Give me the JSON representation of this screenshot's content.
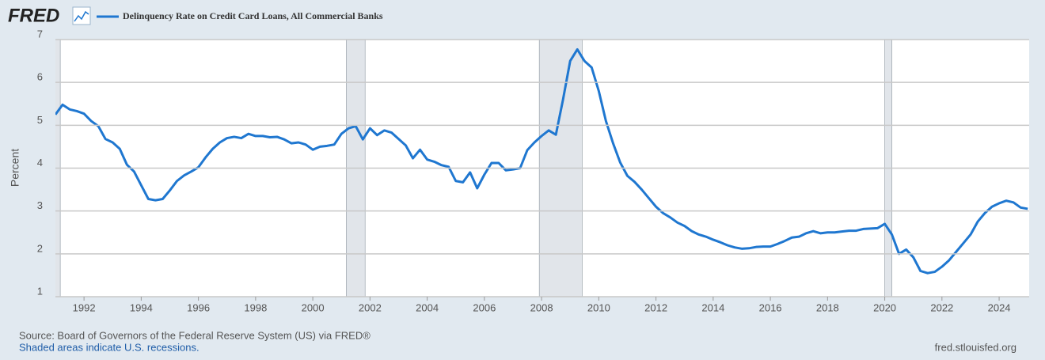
{
  "chart_data": {
    "type": "line",
    "logo": "FRED",
    "title": "Delinquency Rate on Credit Card Loans, All Commercial Banks",
    "y_label": "Percent",
    "source": "Source: Board of Governors of the Federal Reserve System (US) via FRED®",
    "recession_note": "Shaded areas indicate U.S. recessions.",
    "site": "fred.stlouisfed.org",
    "xlim": [
      1991,
      2025.05
    ],
    "ylim": [
      1,
      7
    ],
    "xticks": [
      1992,
      1994,
      1996,
      1998,
      2000,
      2002,
      2004,
      2006,
      2008,
      2010,
      2012,
      2014,
      2016,
      2018,
      2020,
      2022,
      2024
    ],
    "yticks": [
      1,
      2,
      3,
      4,
      5,
      6,
      7
    ],
    "grid": true,
    "recessions": [
      [
        1990.5,
        1991.17
      ],
      [
        2001.17,
        2001.83
      ],
      [
        2007.92,
        2009.42
      ],
      [
        2020.0,
        2020.25
      ]
    ],
    "x": [
      1991,
      1991.25,
      1991.5,
      1991.75,
      1992,
      1992.25,
      1992.5,
      1992.75,
      1993,
      1993.25,
      1993.5,
      1993.75,
      1994,
      1994.25,
      1994.5,
      1994.75,
      1995,
      1995.25,
      1995.5,
      1995.75,
      1996,
      1996.25,
      1996.5,
      1996.75,
      1997,
      1997.25,
      1997.5,
      1997.75,
      1998,
      1998.25,
      1998.5,
      1998.75,
      1999,
      1999.25,
      1999.5,
      1999.75,
      2000,
      2000.25,
      2000.5,
      2000.75,
      2001,
      2001.25,
      2001.5,
      2001.75,
      2002,
      2002.25,
      2002.5,
      2002.75,
      2003,
      2003.25,
      2003.5,
      2003.75,
      2004,
      2004.25,
      2004.5,
      2004.75,
      2005,
      2005.25,
      2005.5,
      2005.75,
      2006,
      2006.25,
      2006.5,
      2006.75,
      2007,
      2007.25,
      2007.5,
      2007.75,
      2008,
      2008.25,
      2008.5,
      2008.75,
      2009,
      2009.25,
      2009.5,
      2009.75,
      2010,
      2010.25,
      2010.5,
      2010.75,
      2011,
      2011.25,
      2011.5,
      2011.75,
      2012,
      2012.25,
      2012.5,
      2012.75,
      2013,
      2013.25,
      2013.5,
      2013.75,
      2014,
      2014.25,
      2014.5,
      2014.75,
      2015,
      2015.25,
      2015.5,
      2015.75,
      2016,
      2016.25,
      2016.5,
      2016.75,
      2017,
      2017.25,
      2017.5,
      2017.75,
      2018,
      2018.25,
      2018.5,
      2018.75,
      2019,
      2019.25,
      2019.5,
      2019.75,
      2020,
      2020.25,
      2020.5,
      2020.75,
      2021,
      2021.25,
      2021.5,
      2021.75,
      2022,
      2022.25,
      2022.5,
      2022.75,
      2023,
      2023.25,
      2023.5,
      2023.75,
      2024,
      2024.25,
      2024.5,
      2024.75,
      2025
    ],
    "series": [
      {
        "name": "Delinquency Rate on Credit Card Loans, All Commercial Banks",
        "color": "#1f77d0",
        "values": [
          5.25,
          5.48,
          5.37,
          5.33,
          5.27,
          5.1,
          4.98,
          4.68,
          4.6,
          4.45,
          4.08,
          3.92,
          3.6,
          3.28,
          3.25,
          3.28,
          3.48,
          3.7,
          3.83,
          3.92,
          4.02,
          4.25,
          4.45,
          4.6,
          4.7,
          4.73,
          4.7,
          4.8,
          4.75,
          4.75,
          4.72,
          4.73,
          4.67,
          4.58,
          4.6,
          4.55,
          4.43,
          4.5,
          4.52,
          4.55,
          4.8,
          4.93,
          4.98,
          4.67,
          4.93,
          4.77,
          4.88,
          4.83,
          4.68,
          4.53,
          4.23,
          4.43,
          4.2,
          4.15,
          4.07,
          4.03,
          3.7,
          3.67,
          3.9,
          3.53,
          3.85,
          4.12,
          4.12,
          3.95,
          3.97,
          4.0,
          4.42,
          4.6,
          4.75,
          4.88,
          4.78,
          5.6,
          6.5,
          6.77,
          6.5,
          6.35,
          5.8,
          5.1,
          4.58,
          4.13,
          3.82,
          3.68,
          3.5,
          3.3,
          3.1,
          2.95,
          2.85,
          2.73,
          2.65,
          2.53,
          2.45,
          2.4,
          2.33,
          2.27,
          2.2,
          2.15,
          2.12,
          2.13,
          2.16,
          2.17,
          2.17,
          2.23,
          2.3,
          2.38,
          2.4,
          2.48,
          2.53,
          2.48,
          2.5,
          2.5,
          2.52,
          2.54,
          2.54,
          2.58,
          2.59,
          2.6,
          2.7,
          2.45,
          2.0,
          2.1,
          1.92,
          1.6,
          1.55,
          1.58,
          1.7,
          1.85,
          2.05,
          2.25,
          2.45,
          2.75,
          2.95,
          3.1,
          3.18,
          3.24,
          3.2,
          3.08,
          3.05
        ]
      }
    ]
  }
}
